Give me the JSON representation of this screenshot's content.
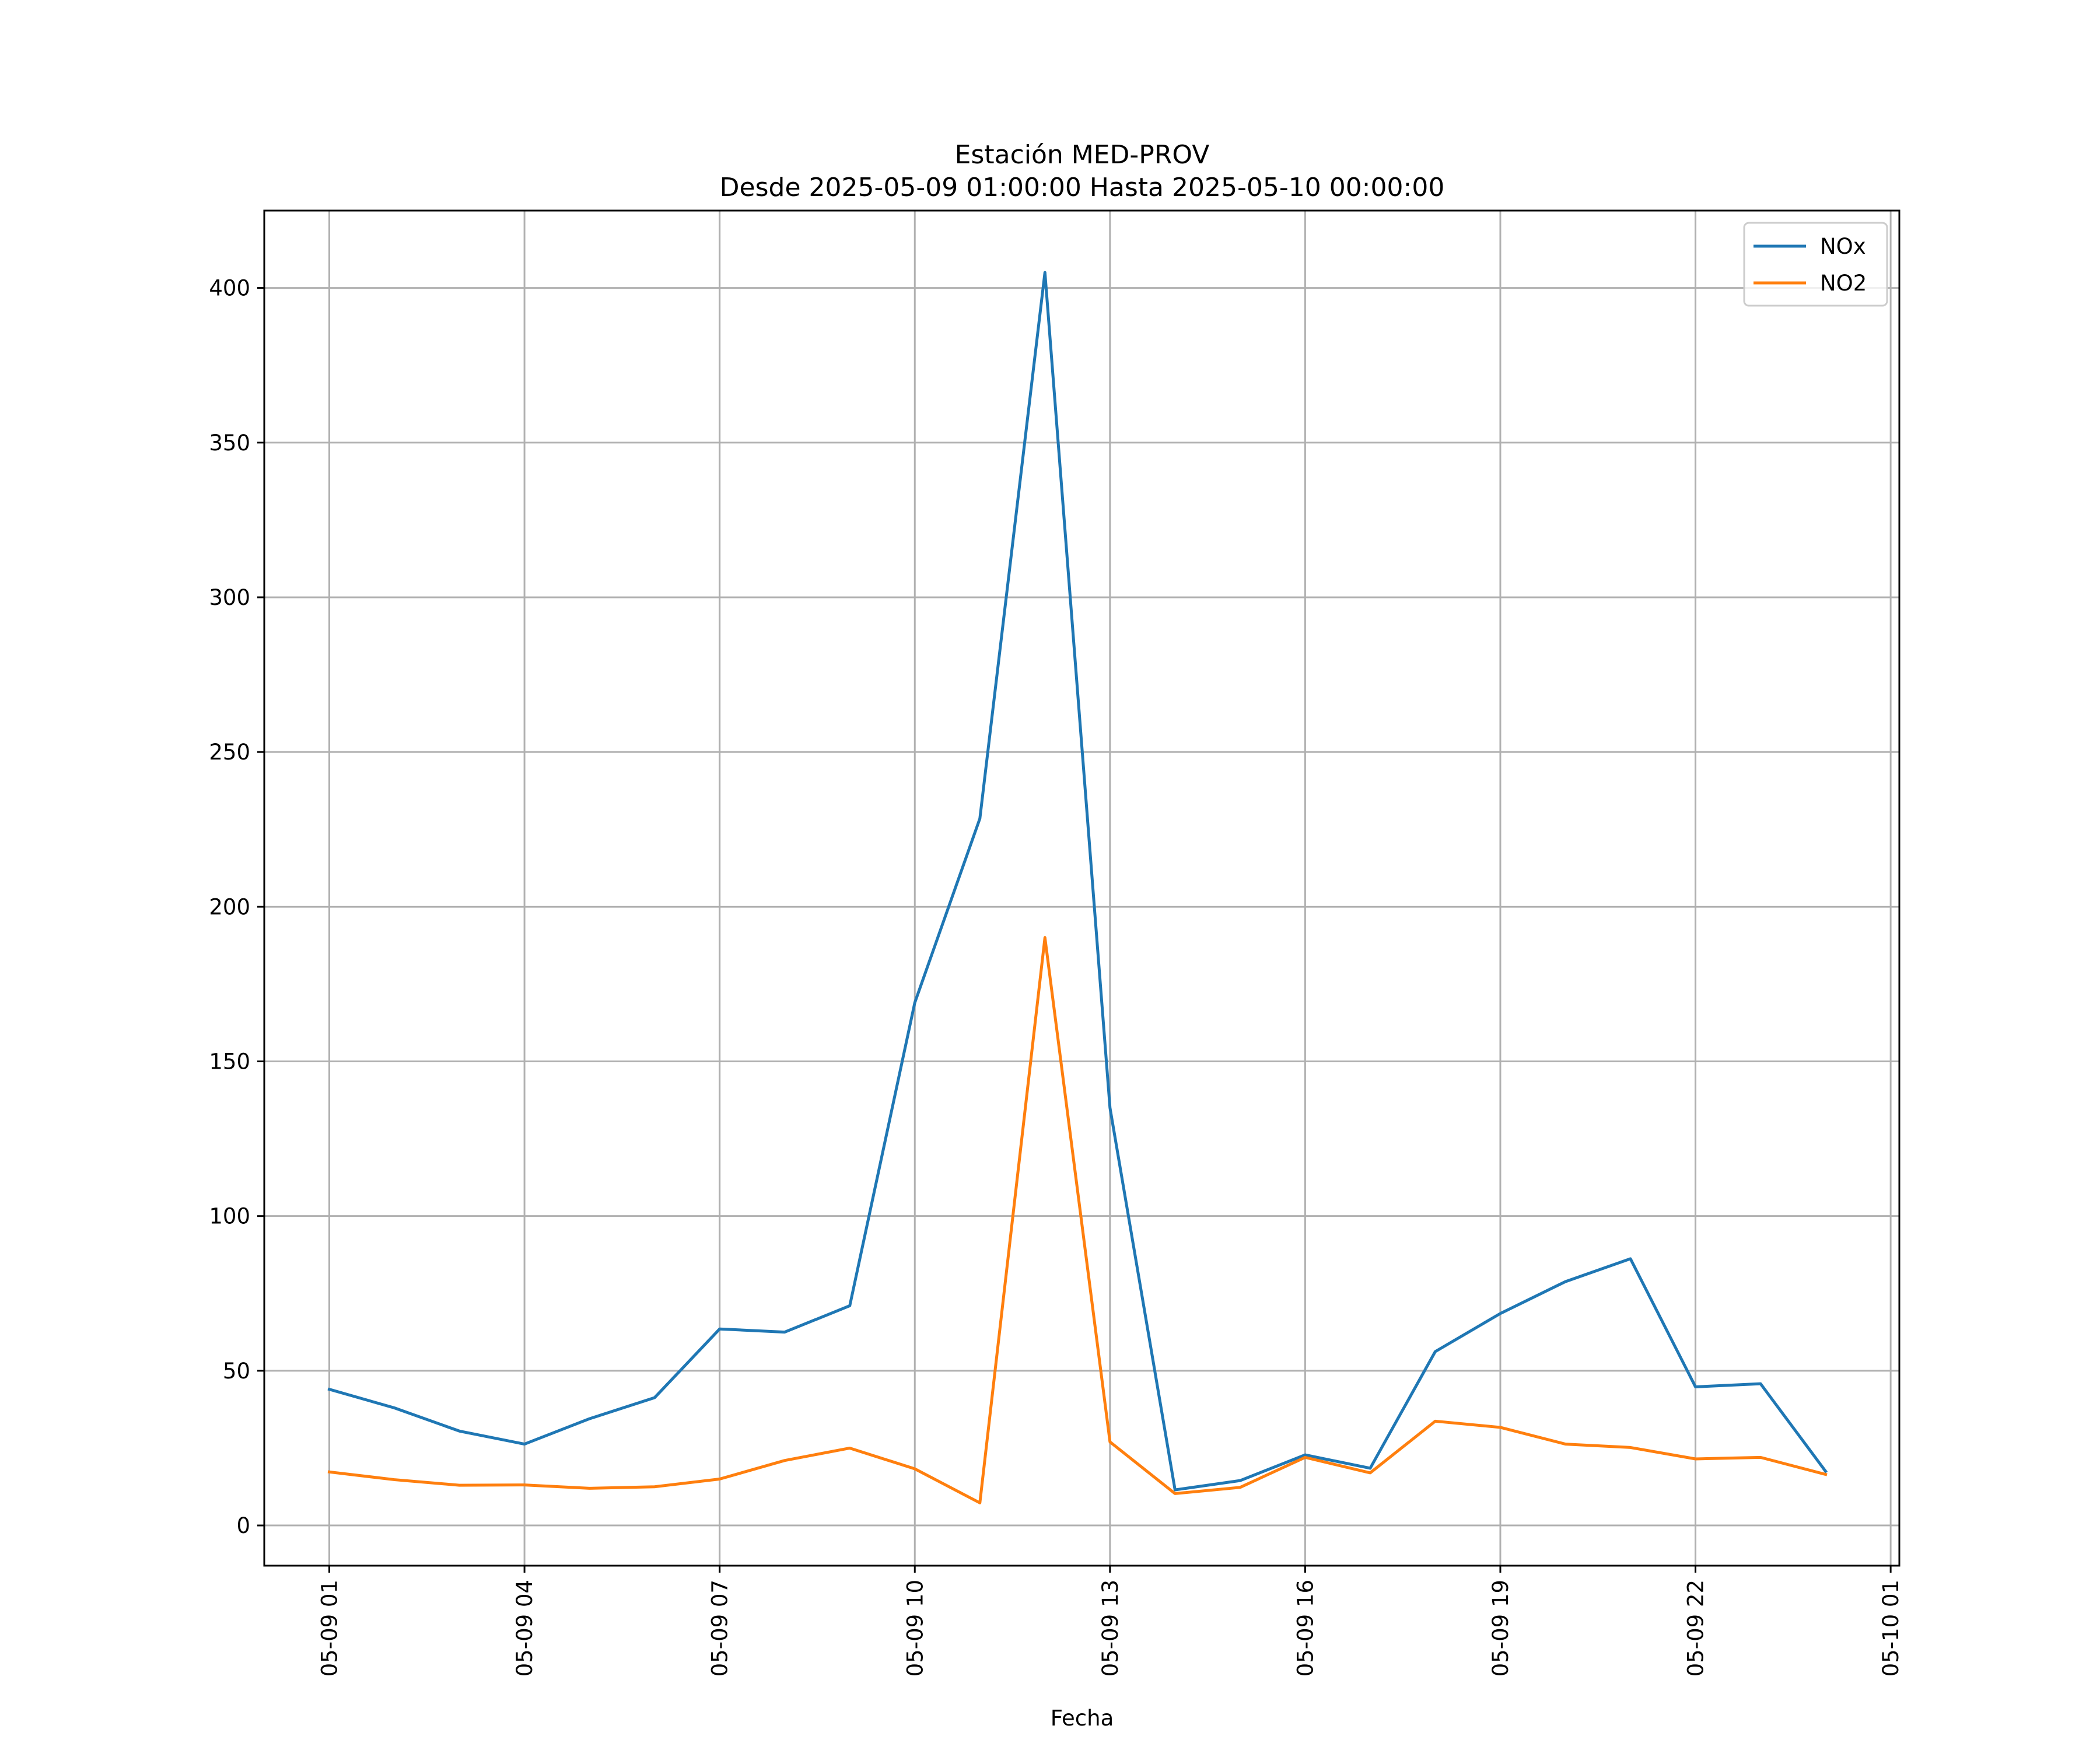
{
  "chart_data": {
    "type": "line",
    "title": "Estación MED-PROV",
    "subtitle": "Desde 2025-05-09 01:00:00 Hasta 2025-05-10 00:00:00",
    "xlabel": "Fecha",
    "ylabel": "",
    "x": [
      "2025-05-09 01:00",
      "2025-05-09 02:00",
      "2025-05-09 03:00",
      "2025-05-09 04:00",
      "2025-05-09 05:00",
      "2025-05-09 06:00",
      "2025-05-09 07:00",
      "2025-05-09 08:00",
      "2025-05-09 09:00",
      "2025-05-09 10:00",
      "2025-05-09 11:00",
      "2025-05-09 12:00",
      "2025-05-09 13:00",
      "2025-05-09 14:00",
      "2025-05-09 15:00",
      "2025-05-09 16:00",
      "2025-05-09 17:00",
      "2025-05-09 18:00",
      "2025-05-09 19:00",
      "2025-05-09 20:00",
      "2025-05-09 21:00",
      "2025-05-09 22:00",
      "2025-05-09 23:00",
      "2025-05-10 00:00"
    ],
    "xlim": [
      "2025-05-09 00:00",
      "2025-05-10 01:08"
    ],
    "x_ticks": [
      "05-09 01",
      "05-09 04",
      "05-09 07",
      "05-09 10",
      "05-09 13",
      "05-09 16",
      "05-09 19",
      "05-09 22",
      "05-10 01"
    ],
    "y_ticks": [
      "0",
      "50",
      "100",
      "150",
      "200",
      "250",
      "300",
      "350",
      "400"
    ],
    "ylim": [
      -13,
      425
    ],
    "series": [
      {
        "name": "NOx",
        "color": "#1f77b4",
        "values": [
          44,
          38,
          30.5,
          26.3,
          34.5,
          41.3,
          63.5,
          62.5,
          71,
          169,
          228.5,
          405,
          135,
          11.5,
          14.5,
          22.8,
          18.5,
          56.2,
          68.5,
          78.8,
          86.2,
          44.8,
          45.8,
          17.5
        ]
      },
      {
        "name": "NO2",
        "color": "#ff7f0e",
        "values": [
          17.3,
          14.8,
          13,
          13.1,
          12,
          12.5,
          15,
          21,
          25,
          18.3,
          7.3,
          190,
          27,
          10.3,
          12.3,
          22,
          17,
          33.7,
          31.7,
          26.3,
          25.2,
          21.5,
          22,
          16.5
        ]
      }
    ],
    "grid": true,
    "legend_position": "top-right"
  }
}
